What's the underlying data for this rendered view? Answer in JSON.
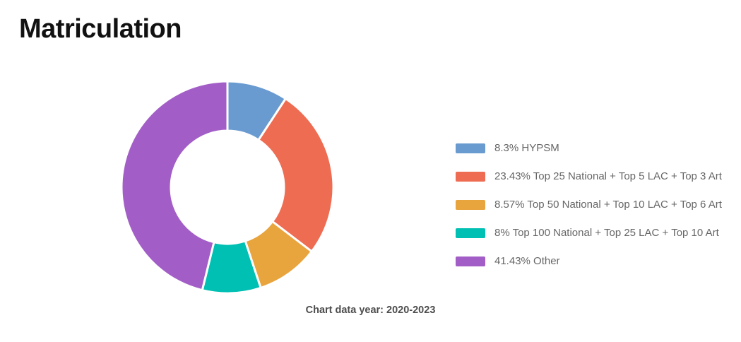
{
  "page": {
    "title": "Matriculation",
    "caption": "Chart data year: 2020-2023",
    "background": "#ffffff"
  },
  "chart_data": {
    "type": "pie",
    "subtype": "donut",
    "title": "Matriculation",
    "note": "Chart data year: 2020-2023",
    "labels": [
      "HYPSM",
      "Top 25 National + Top 5 LAC + Top 3 Art",
      "Top 50 National + Top 10 LAC + Top 6 Art",
      "Top 100 National + Top 25 LAC + Top 10 Art",
      "Other"
    ],
    "values": [
      8.3,
      23.43,
      8.57,
      8,
      41.43
    ],
    "colors": [
      "#699bd0",
      "#ee6c52",
      "#e8a43d",
      "#00bfb3",
      "#a25ec6"
    ],
    "start_angle_deg": 0,
    "direction": "clockwise",
    "inner_radius_ratio": 0.53,
    "slice_border_color": "#ffffff",
    "slice_border_width": 3,
    "legend_position": "right"
  },
  "legend": {
    "items": [
      {
        "label": "8.3% HYPSM",
        "color": "#699bd0"
      },
      {
        "label": "23.43% Top 25 National + Top 5 LAC + Top 3 Art",
        "color": "#ee6c52"
      },
      {
        "label": "8.57% Top 50 National + Top 10 LAC + Top 6 Art",
        "color": "#e8a43d"
      },
      {
        "label": "8% Top 100 National + Top 25 LAC + Top 10 Art",
        "color": "#00bfb3"
      },
      {
        "label": "41.43% Other",
        "color": "#a25ec6"
      }
    ]
  }
}
